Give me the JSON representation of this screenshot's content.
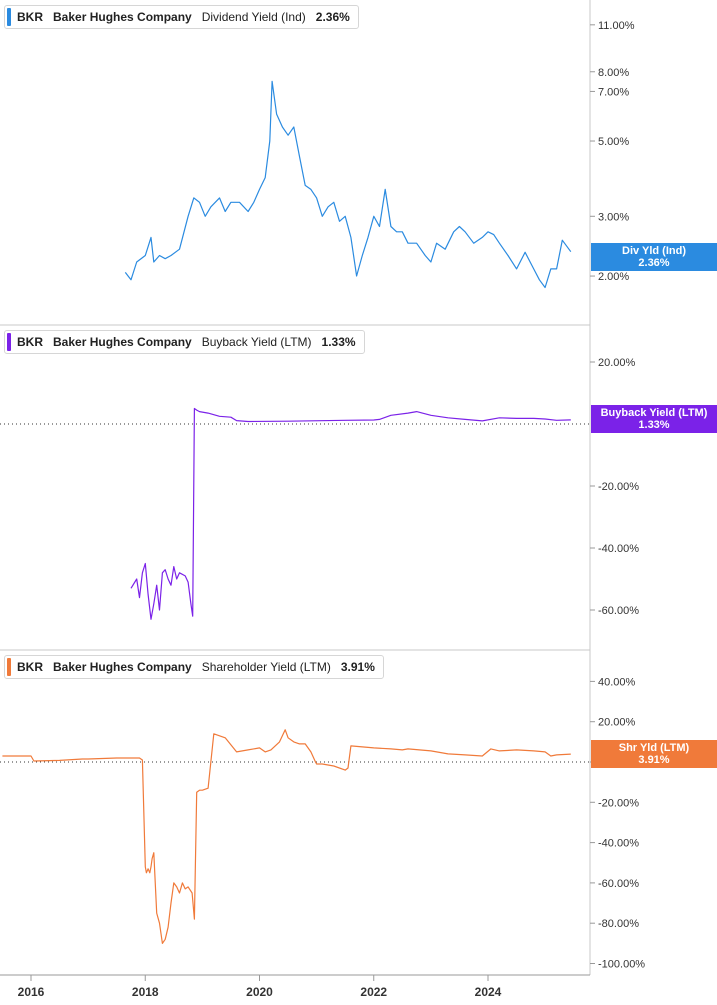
{
  "panels": [
    {
      "ticker": "BKR",
      "company": "Baker Hughes Company",
      "metric": "Dividend Yield (Ind)",
      "value": "2.36%",
      "tag_label": "Div Yld (Ind)",
      "tag_value": "2.36%",
      "color": "#2b8be0",
      "ticks": [
        "11.00%",
        "8.00%",
        "7.00%",
        "5.00%",
        "3.00%",
        "2.00%"
      ]
    },
    {
      "ticker": "BKR",
      "company": "Baker Hughes Company",
      "metric": "Buyback Yield (LTM)",
      "value": "1.33%",
      "tag_label": "Buyback Yield (LTM)",
      "tag_value": "1.33%",
      "color": "#7b22e8",
      "ticks": [
        "20.00%",
        "-20.00%",
        "-40.00%",
        "-60.00%"
      ]
    },
    {
      "ticker": "BKR",
      "company": "Baker Hughes Company",
      "metric": "Shareholder Yield (LTM)",
      "value": "3.91%",
      "tag_label": "Shr Yld (LTM)",
      "tag_value": "3.91%",
      "color": "#f07a3a",
      "ticks": [
        "40.00%",
        "20.00%",
        "0.00%",
        "-20.00%",
        "-40.00%",
        "-60.00%",
        "-80.00%",
        "-100.00%"
      ]
    }
  ],
  "x_labels": [
    "2016",
    "2018",
    "2020",
    "2022",
    "2024"
  ],
  "chart_data": [
    {
      "type": "line",
      "ylabel": "",
      "y_scale": "log",
      "ylim": [
        1.7,
        12
      ],
      "series": [
        {
          "x": [
            2017.65,
            2017.75,
            2017.85,
            2018.0,
            2018.1,
            2018.15,
            2018.25,
            2018.35,
            2018.45,
            2018.6,
            2018.75,
            2018.85,
            2018.95,
            2019.05,
            2019.15,
            2019.3,
            2019.4,
            2019.5,
            2019.65,
            2019.8,
            2019.9,
            2020.0,
            2020.1,
            2020.18,
            2020.22,
            2020.3,
            2020.4,
            2020.5,
            2020.6,
            2020.7,
            2020.8,
            2020.9,
            2021.0,
            2021.1,
            2021.2,
            2021.3,
            2021.4,
            2021.5,
            2021.6,
            2021.7,
            2021.8,
            2021.9,
            2022.0,
            2022.1,
            2022.2,
            2022.3,
            2022.4,
            2022.5,
            2022.6,
            2022.75,
            2022.9,
            2023.0,
            2023.1,
            2023.25,
            2023.4,
            2023.5,
            2023.6,
            2023.75,
            2023.9,
            2024.0,
            2024.1,
            2024.2,
            2024.35,
            2024.5,
            2024.65,
            2024.8,
            2024.9,
            2025.0,
            2025.1,
            2025.2,
            2025.3,
            2025.45
          ],
          "values": [
            2.05,
            1.95,
            2.2,
            2.3,
            2.6,
            2.2,
            2.3,
            2.25,
            2.3,
            2.4,
            3.0,
            3.4,
            3.3,
            3.0,
            3.2,
            3.4,
            3.1,
            3.3,
            3.3,
            3.1,
            3.3,
            3.6,
            3.9,
            5.0,
            7.5,
            6.0,
            5.5,
            5.2,
            5.5,
            4.5,
            3.7,
            3.6,
            3.4,
            3.0,
            3.2,
            3.3,
            2.9,
            3.0,
            2.6,
            2.0,
            2.3,
            2.6,
            3.0,
            2.8,
            3.6,
            2.8,
            2.7,
            2.7,
            2.5,
            2.5,
            2.3,
            2.2,
            2.5,
            2.4,
            2.7,
            2.8,
            2.7,
            2.5,
            2.6,
            2.7,
            2.65,
            2.5,
            2.3,
            2.1,
            2.35,
            2.1,
            1.95,
            1.85,
            2.1,
            2.1,
            2.55,
            2.36
          ]
        }
      ]
    },
    {
      "type": "line",
      "ylabel": "",
      "ylim": [
        -70,
        28
      ],
      "series": [
        {
          "x": [
            2017.75,
            2017.85,
            2017.9,
            2017.95,
            2018.0,
            2018.05,
            2018.1,
            2018.15,
            2018.2,
            2018.25,
            2018.3,
            2018.35,
            2018.4,
            2018.45,
            2018.5,
            2018.55,
            2018.6,
            2018.7,
            2018.75,
            2018.8,
            2018.83,
            2018.86,
            2018.9,
            2018.95,
            2019.1,
            2019.3,
            2019.5,
            2019.6,
            2019.8,
            2020.5,
            2021.5,
            2022.0,
            2022.1,
            2022.3,
            2022.6,
            2022.75,
            2023.0,
            2023.3,
            2023.6,
            2023.9,
            2024.2,
            2024.5,
            2024.8,
            2025.0,
            2025.2,
            2025.45
          ],
          "values": [
            -53,
            -50,
            -56,
            -48,
            -45,
            -55,
            -63,
            -58,
            -52,
            -60,
            -48,
            -47,
            -50,
            -52,
            -46,
            -50,
            -48,
            -49,
            -51,
            -58,
            -62,
            5,
            4.5,
            4,
            3.5,
            2.5,
            2.2,
            1.1,
            0.8,
            0.9,
            1.2,
            1.3,
            1.5,
            2.8,
            3.5,
            4.0,
            2.8,
            2.0,
            1.5,
            1.0,
            2.0,
            1.8,
            1.8,
            1.6,
            1.2,
            1.33
          ]
        }
      ]
    },
    {
      "type": "line",
      "ylabel": "",
      "ylim": [
        -102,
        46
      ],
      "series": [
        {
          "x": [
            2015.5,
            2016.0,
            2016.05,
            2016.5,
            2016.9,
            2017.0,
            2017.5,
            2017.9,
            2017.95,
            2018.0,
            2018.02,
            2018.05,
            2018.08,
            2018.1,
            2018.12,
            2018.15,
            2018.2,
            2018.25,
            2018.3,
            2018.35,
            2018.4,
            2018.45,
            2018.5,
            2018.55,
            2018.6,
            2018.65,
            2018.7,
            2018.75,
            2018.82,
            2018.86,
            2018.9,
            2018.95,
            2019.0,
            2019.1,
            2019.2,
            2019.3,
            2019.4,
            2019.6,
            2019.8,
            2020.0,
            2020.1,
            2020.2,
            2020.35,
            2020.45,
            2020.5,
            2020.6,
            2020.7,
            2020.8,
            2020.9,
            2020.98,
            2021.0,
            2021.1,
            2021.3,
            2021.5,
            2021.55,
            2021.6,
            2022.0,
            2022.3,
            2022.5,
            2022.6,
            2022.8,
            2023.0,
            2023.3,
            2023.6,
            2023.9,
            2024.05,
            2024.2,
            2024.5,
            2024.8,
            2025.0,
            2025.1,
            2025.2,
            2025.45
          ],
          "values": [
            3,
            3,
            0.5,
            0.8,
            1.5,
            1.5,
            2.0,
            2.0,
            1.0,
            -52,
            -55,
            -53,
            -55,
            -52,
            -48,
            -45,
            -75,
            -80,
            -90,
            -88,
            -82,
            -70,
            -60,
            -62,
            -65,
            -60,
            -63,
            -62,
            -65,
            -78,
            -15,
            -14,
            -14,
            -13,
            14,
            13,
            12,
            5,
            6,
            7,
            5,
            6,
            10,
            16,
            12,
            10,
            9,
            9,
            5,
            0,
            -1,
            -1,
            -2,
            -4,
            -3,
            8,
            7,
            6.5,
            6,
            6.5,
            6,
            5.5,
            4.0,
            3.5,
            3.0,
            6.5,
            5.5,
            6.0,
            5.5,
            5.0,
            3.0,
            3.5,
            3.91
          ]
        }
      ]
    }
  ]
}
